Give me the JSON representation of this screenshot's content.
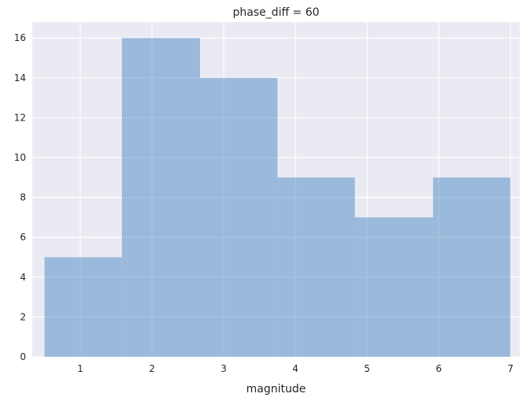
{
  "chart_data": {
    "type": "bar",
    "title": "phase_diff = 60",
    "xlabel": "magnitude",
    "ylabel": "",
    "xlim": [
      0.33,
      7.13
    ],
    "ylim": [
      0,
      16.8
    ],
    "xticks": [
      1,
      2,
      3,
      4,
      5,
      6,
      7
    ],
    "yticks": [
      0,
      2,
      4,
      6,
      8,
      10,
      12,
      14,
      16
    ],
    "grid": true,
    "bins": [
      {
        "x0": 0.5,
        "x1": 1.58,
        "value": 5
      },
      {
        "x0": 1.58,
        "x1": 2.67,
        "value": 16
      },
      {
        "x0": 2.67,
        "x1": 3.75,
        "value": 14
      },
      {
        "x0": 3.75,
        "x1": 4.83,
        "value": 9
      },
      {
        "x0": 4.83,
        "x1": 5.92,
        "value": 7
      },
      {
        "x0": 5.92,
        "x1": 7.0,
        "value": 9
      }
    ],
    "colors": {
      "plot_background": "#eaeaf2",
      "grid": "#ffffff",
      "bar_fill": "#4c8ac4",
      "bar_opacity": 0.5
    }
  }
}
